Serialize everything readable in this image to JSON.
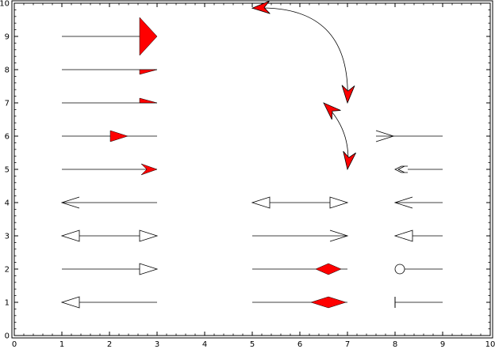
{
  "chart_data": {
    "type": "scatter",
    "title": "",
    "xlabel": "",
    "ylabel": "",
    "xlim": [
      0,
      10
    ],
    "ylim": [
      0,
      10
    ],
    "x_ticks": [
      "0",
      "1",
      "2",
      "3",
      "4",
      "5",
      "6",
      "7",
      "8",
      "9",
      "10"
    ],
    "y_ticks": [
      "0",
      "1",
      "2",
      "3",
      "4",
      "5",
      "6",
      "7",
      "8",
      "9",
      "10"
    ],
    "grid": false,
    "colors": {
      "fill_red": "#ff0000",
      "fill_white": "#ffffff",
      "line": "#000000"
    },
    "vectors": [
      {
        "x0": 1,
        "y0": 9,
        "x1": 3,
        "y1": 9,
        "end_head": "filled-triangle-large",
        "fill": "red"
      },
      {
        "x0": 1,
        "y0": 8,
        "x1": 3,
        "y1": 8,
        "end_head": "filled-half-lower",
        "fill": "red"
      },
      {
        "x0": 1,
        "y0": 7,
        "x1": 3,
        "y1": 7,
        "end_head": "filled-half-upper",
        "fill": "red"
      },
      {
        "x0": 1,
        "y0": 6,
        "x1": 3,
        "y1": 6,
        "mid_head": "filled-triangle",
        "mid_at": 2.2,
        "fill": "red"
      },
      {
        "x0": 1,
        "y0": 5,
        "x1": 3,
        "y1": 5,
        "end_head": "filled-notched",
        "fill": "red"
      },
      {
        "x0": 1,
        "y0": 4,
        "x1": 3,
        "y1": 4,
        "start_head": "open-v"
      },
      {
        "x0": 1,
        "y0": 3,
        "x1": 3,
        "y1": 3,
        "start_head": "open-triangle",
        "end_head": "open-triangle",
        "fill": "white"
      },
      {
        "x0": 1,
        "y0": 2,
        "x1": 3,
        "y1": 2,
        "end_head": "open-triangle",
        "fill": "white"
      },
      {
        "x0": 1,
        "y0": 1,
        "x1": 3,
        "y1": 1,
        "start_head": "open-triangle",
        "fill": "white"
      },
      {
        "x0": 5,
        "y0": 4,
        "x1": 7,
        "y1": 4,
        "start_head": "open-triangle",
        "end_head": "open-triangle",
        "fill": "white"
      },
      {
        "x0": 5,
        "y0": 3,
        "x1": 7,
        "y1": 3,
        "end_head": "open-v"
      },
      {
        "x0": 5,
        "y0": 2,
        "x1": 7,
        "y1": 2,
        "mid_head": "filled-diamond",
        "mid_at": 6.6,
        "fill": "red"
      },
      {
        "x0": 5,
        "y0": 1,
        "x1": 7,
        "y1": 1,
        "mid_head": "filled-diamond-large",
        "mid_at": 6.6,
        "fill": "red"
      },
      {
        "x0": 9,
        "y0": 6,
        "x1": 7.6,
        "y1": 6,
        "end_head": "open-v-tail"
      },
      {
        "x0": 9,
        "y0": 5,
        "x1": 8,
        "y1": 5,
        "end_head": "open-double"
      },
      {
        "x0": 9,
        "y0": 4,
        "x1": 8,
        "y1": 4,
        "end_head": "open-v"
      },
      {
        "x0": 9,
        "y0": 3,
        "x1": 8,
        "y1": 3,
        "end_head": "open-triangle",
        "fill": "white"
      },
      {
        "x0": 9,
        "y0": 2,
        "x1": 8,
        "y1": 2,
        "end_head": "circle",
        "fill": "white"
      },
      {
        "x0": 9,
        "y0": 1,
        "x1": 8,
        "y1": 1,
        "end_head": "bar"
      }
    ],
    "arcs": [
      {
        "x0": 5,
        "y0": 9.85,
        "x1": 7,
        "y1": 7,
        "bend": 0.55,
        "fill": "red"
      },
      {
        "x0": 6.5,
        "y0": 7,
        "x1": 7,
        "y1": 5,
        "bend": 0.25,
        "fill": "red"
      }
    ]
  }
}
